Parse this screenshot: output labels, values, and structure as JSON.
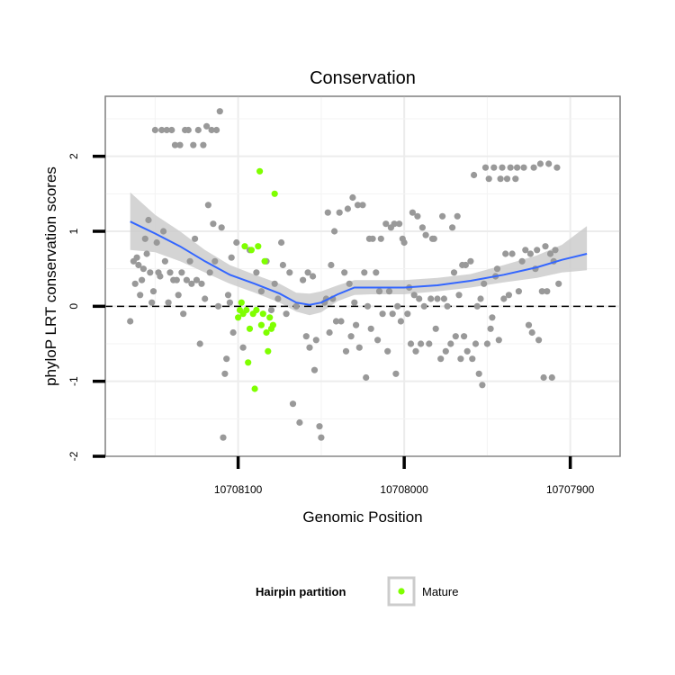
{
  "chart_data": {
    "type": "scatter",
    "title": "Conservation",
    "xlabel": "Genomic Position",
    "ylabel": "phyloP LRT conservation scores",
    "x_reversed": true,
    "xlim": [
      10708180,
      10707870
    ],
    "ylim": [
      -2,
      2.8
    ],
    "x_ticks": [
      10708100,
      10708000,
      10707900
    ],
    "x_tick_labels": [
      "10708100",
      "10708000",
      "10707900"
    ],
    "y_ticks": [
      -2,
      -1,
      0,
      1,
      2
    ],
    "y_tick_labels": [
      "-2",
      "-1",
      "0",
      "1",
      "2"
    ],
    "reference_line": 0,
    "grid": true,
    "legend": {
      "title": "Hairpin partition",
      "position": "bottom",
      "entries": [
        {
          "label": "Mature",
          "color": "#7fff00"
        }
      ]
    },
    "colors": {
      "other": "#999999",
      "mature": "#7fff00",
      "smooth": "#3366ff",
      "band": "#cccccc"
    },
    "series": [
      {
        "name": "Other",
        "color": "#999999",
        "points": [
          [
            10708165,
            -0.2
          ],
          [
            10708163,
            0.6
          ],
          [
            10708162,
            0.3
          ],
          [
            10708161,
            0.65
          ],
          [
            10708160,
            0.55
          ],
          [
            10708159,
            0.15
          ],
          [
            10708158,
            0.35
          ],
          [
            10708157,
            0.5
          ],
          [
            10708156,
            0.9
          ],
          [
            10708155,
            0.7
          ],
          [
            10708154,
            1.15
          ],
          [
            10708153,
            0.45
          ],
          [
            10708152,
            0.05
          ],
          [
            10708151,
            0.2
          ],
          [
            10708150,
            2.35
          ],
          [
            10708149,
            0.85
          ],
          [
            10708148,
            0.45
          ],
          [
            10708147,
            0.4
          ],
          [
            10708146,
            2.35
          ],
          [
            10708145,
            1.0
          ],
          [
            10708144,
            0.6
          ],
          [
            10708143,
            2.35
          ],
          [
            10708142,
            0.05
          ],
          [
            10708141,
            0.45
          ],
          [
            10708140,
            2.35
          ],
          [
            10708139,
            0.35
          ],
          [
            10708138,
            2.15
          ],
          [
            10708137,
            0.35
          ],
          [
            10708136,
            0.15
          ],
          [
            10708135,
            2.15
          ],
          [
            10708134,
            0.45
          ],
          [
            10708133,
            -0.1
          ],
          [
            10708132,
            2.35
          ],
          [
            10708131,
            0.35
          ],
          [
            10708130,
            2.35
          ],
          [
            10708129,
            0.6
          ],
          [
            10708128,
            0.3
          ],
          [
            10708127,
            2.15
          ],
          [
            10708126,
            0.9
          ],
          [
            10708125,
            0.35
          ],
          [
            10708124,
            2.35
          ],
          [
            10708123,
            -0.5
          ],
          [
            10708122,
            0.3
          ],
          [
            10708121,
            2.15
          ],
          [
            10708120,
            0.1
          ],
          [
            10708119,
            2.4
          ],
          [
            10708118,
            1.35
          ],
          [
            10708117,
            0.45
          ],
          [
            10708116,
            2.35
          ],
          [
            10708115,
            1.1
          ],
          [
            10708114,
            0.6
          ],
          [
            10708113,
            2.35
          ],
          [
            10708112,
            0.0
          ],
          [
            10708111,
            2.6
          ],
          [
            10708110,
            1.05
          ],
          [
            10708109,
            -1.75
          ],
          [
            10708108,
            -0.9
          ],
          [
            10708107,
            -0.7
          ],
          [
            10708106,
            0.15
          ],
          [
            10708105,
            0.05
          ],
          [
            10708104,
            0.65
          ],
          [
            10708103,
            -0.35
          ],
          [
            10708101,
            0.85
          ],
          [
            10708097,
            -0.55
          ],
          [
            10708093,
            0.75
          ],
          [
            10708089,
            0.45
          ],
          [
            10708086,
            0.2
          ],
          [
            10708083,
            0.6
          ],
          [
            10708080,
            -0.05
          ],
          [
            10708078,
            0.3
          ],
          [
            10708076,
            0.1
          ],
          [
            10708074,
            0.85
          ],
          [
            10708073,
            0.55
          ],
          [
            10708071,
            -0.1
          ],
          [
            10708069,
            0.45
          ],
          [
            10708067,
            -1.3
          ],
          [
            10708065,
            0.0
          ],
          [
            10708063,
            -1.55
          ],
          [
            10708061,
            0.35
          ],
          [
            10708059,
            -0.4
          ],
          [
            10708058,
            0.45
          ],
          [
            10708057,
            -0.55
          ],
          [
            10708055,
            0.4
          ],
          [
            10708054,
            -0.85
          ],
          [
            10708053,
            -0.45
          ],
          [
            10708051,
            -1.6
          ],
          [
            10708050,
            -1.75
          ],
          [
            10708048,
            0.05
          ],
          [
            10708047,
            0.1
          ],
          [
            10708046,
            1.25
          ],
          [
            10708045,
            -0.35
          ],
          [
            10708044,
            0.55
          ],
          [
            10708043,
            0.1
          ],
          [
            10708042,
            1.0
          ],
          [
            10708041,
            -0.2
          ],
          [
            10708039,
            1.25
          ],
          [
            10708038,
            -0.2
          ],
          [
            10708036,
            0.45
          ],
          [
            10708035,
            -0.6
          ],
          [
            10708034,
            1.3
          ],
          [
            10708033,
            0.3
          ],
          [
            10708032,
            -0.4
          ],
          [
            10708031,
            1.45
          ],
          [
            10708030,
            0.05
          ],
          [
            10708029,
            -0.25
          ],
          [
            10708028,
            1.35
          ],
          [
            10708027,
            -0.55
          ],
          [
            10708025,
            1.35
          ],
          [
            10708024,
            0.45
          ],
          [
            10708023,
            -0.95
          ],
          [
            10708022,
            0.0
          ],
          [
            10708021,
            0.9
          ],
          [
            10708020,
            -0.3
          ],
          [
            10708019,
            0.9
          ],
          [
            10708017,
            0.45
          ],
          [
            10708016,
            -0.45
          ],
          [
            10708015,
            0.2
          ],
          [
            10708014,
            0.9
          ],
          [
            10708013,
            -0.1
          ],
          [
            10708011,
            1.1
          ],
          [
            10708010,
            -0.6
          ],
          [
            10708009,
            0.2
          ],
          [
            10708008,
            1.05
          ],
          [
            10708007,
            -0.1
          ],
          [
            10708006,
            1.1
          ],
          [
            10708005,
            -0.9
          ],
          [
            10708004,
            0.0
          ],
          [
            10708003,
            1.1
          ],
          [
            10708002,
            -0.2
          ],
          [
            10708001,
            0.9
          ],
          [
            10708000,
            0.85
          ],
          [
            10707998,
            -0.1
          ],
          [
            10707997,
            0.25
          ],
          [
            10707996,
            -0.5
          ],
          [
            10707995,
            1.25
          ],
          [
            10707994,
            0.15
          ],
          [
            10707993,
            -0.6
          ],
          [
            10707992,
            1.2
          ],
          [
            10707991,
            0.1
          ],
          [
            10707990,
            -0.5
          ],
          [
            10707989,
            1.05
          ],
          [
            10707988,
            0.0
          ],
          [
            10707987,
            0.95
          ],
          [
            10707985,
            -0.5
          ],
          [
            10707984,
            0.1
          ],
          [
            10707983,
            0.9
          ],
          [
            10707982,
            0.9
          ],
          [
            10707981,
            -0.3
          ],
          [
            10707980,
            0.1
          ],
          [
            10707978,
            -0.7
          ],
          [
            10707977,
            1.2
          ],
          [
            10707976,
            0.1
          ],
          [
            10707975,
            -0.6
          ],
          [
            10707974,
            0.0
          ],
          [
            10707972,
            -0.5
          ],
          [
            10707971,
            1.05
          ],
          [
            10707970,
            0.45
          ],
          [
            10707969,
            -0.4
          ],
          [
            10707968,
            1.2
          ],
          [
            10707967,
            0.15
          ],
          [
            10707966,
            -0.7
          ],
          [
            10707965,
            0.55
          ],
          [
            10707964,
            -0.4
          ],
          [
            10707963,
            0.55
          ],
          [
            10707962,
            -0.6
          ],
          [
            10707960,
            0.6
          ],
          [
            10707959,
            -0.7
          ],
          [
            10707958,
            1.75
          ],
          [
            10707957,
            -0.5
          ],
          [
            10707956,
            0.0
          ],
          [
            10707955,
            -0.9
          ],
          [
            10707954,
            0.1
          ],
          [
            10707953,
            -1.05
          ],
          [
            10707952,
            0.3
          ],
          [
            10707951,
            1.85
          ],
          [
            10707950,
            -0.5
          ],
          [
            10707949,
            1.7
          ],
          [
            10707948,
            -0.3
          ],
          [
            10707947,
            -0.15
          ],
          [
            10707946,
            1.85
          ],
          [
            10707945,
            0.4
          ],
          [
            10707944,
            0.5
          ],
          [
            10707943,
            -0.45
          ],
          [
            10707942,
            1.7
          ],
          [
            10707941,
            1.85
          ],
          [
            10707940,
            0.1
          ],
          [
            10707939,
            0.7
          ],
          [
            10707938,
            1.7
          ],
          [
            10707937,
            0.15
          ],
          [
            10707936,
            1.85
          ],
          [
            10707935,
            0.7
          ],
          [
            10707933,
            1.7
          ],
          [
            10707932,
            1.85
          ],
          [
            10707931,
            0.2
          ],
          [
            10707929,
            0.6
          ],
          [
            10707928,
            1.85
          ],
          [
            10707927,
            0.75
          ],
          [
            10707925,
            -0.25
          ],
          [
            10707924,
            0.7
          ],
          [
            10707923,
            -0.35
          ],
          [
            10707922,
            1.85
          ],
          [
            10707921,
            0.5
          ],
          [
            10707920,
            0.75
          ],
          [
            10707919,
            -0.45
          ],
          [
            10707918,
            1.9
          ],
          [
            10707917,
            0.2
          ],
          [
            10707916,
            -0.95
          ],
          [
            10707915,
            0.8
          ],
          [
            10707914,
            0.2
          ],
          [
            10707913,
            1.9
          ],
          [
            10707912,
            0.7
          ],
          [
            10707911,
            -0.95
          ],
          [
            10707910,
            0.6
          ],
          [
            10707909,
            0.75
          ],
          [
            10707908,
            1.85
          ],
          [
            10707907,
            0.3
          ]
        ]
      },
      {
        "name": "Mature",
        "color": "#7fff00",
        "points": [
          [
            10708100,
            -0.15
          ],
          [
            10708099,
            -0.05
          ],
          [
            10708098,
            0.05
          ],
          [
            10708097,
            -0.1
          ],
          [
            10708096,
            0.8
          ],
          [
            10708095,
            -0.05
          ],
          [
            10708094,
            -0.75
          ],
          [
            10708093,
            -0.3
          ],
          [
            10708092,
            0.75
          ],
          [
            10708091,
            -0.1
          ],
          [
            10708090,
            -1.1
          ],
          [
            10708089,
            -0.05
          ],
          [
            10708088,
            0.8
          ],
          [
            10708087,
            1.8
          ],
          [
            10708086,
            -0.25
          ],
          [
            10708085,
            -0.1
          ],
          [
            10708084,
            0.6
          ],
          [
            10708083,
            -0.35
          ],
          [
            10708082,
            -0.6
          ],
          [
            10708081,
            -0.15
          ],
          [
            10708080,
            -0.3
          ],
          [
            10708079,
            -0.25
          ],
          [
            10708078,
            1.5
          ]
        ]
      }
    ],
    "smooth": [
      [
        10708165,
        1.13
      ],
      [
        10708150,
        0.97
      ],
      [
        10708135,
        0.8
      ],
      [
        10708120,
        0.6
      ],
      [
        10708105,
        0.42
      ],
      [
        10708090,
        0.3
      ],
      [
        10708075,
        0.17
      ],
      [
        10708065,
        0.05
      ],
      [
        10708057,
        0.02
      ],
      [
        10708050,
        0.05
      ],
      [
        10708040,
        0.16
      ],
      [
        10708030,
        0.25
      ],
      [
        10708020,
        0.25
      ],
      [
        10708000,
        0.25
      ],
      [
        10707980,
        0.28
      ],
      [
        10707960,
        0.34
      ],
      [
        10707940,
        0.42
      ],
      [
        10707920,
        0.52
      ],
      [
        10707905,
        0.62
      ],
      [
        10707890,
        0.7
      ]
    ],
    "smooth_band": [
      [
        10708165,
        0.75,
        1.52
      ],
      [
        10708150,
        0.72,
        1.22
      ],
      [
        10708135,
        0.6,
        1.0
      ],
      [
        10708120,
        0.45,
        0.75
      ],
      [
        10708105,
        0.3,
        0.55
      ],
      [
        10708090,
        0.18,
        0.42
      ],
      [
        10708075,
        0.05,
        0.3
      ],
      [
        10708065,
        -0.07,
        0.18
      ],
      [
        10708057,
        -0.12,
        0.17
      ],
      [
        10708050,
        -0.08,
        0.2
      ],
      [
        10708040,
        0.07,
        0.28
      ],
      [
        10708030,
        0.15,
        0.35
      ],
      [
        10708020,
        0.16,
        0.35
      ],
      [
        10708000,
        0.16,
        0.35
      ],
      [
        10707980,
        0.2,
        0.38
      ],
      [
        10707960,
        0.25,
        0.43
      ],
      [
        10707940,
        0.32,
        0.55
      ],
      [
        10707920,
        0.38,
        0.68
      ],
      [
        10707905,
        0.45,
        0.82
      ],
      [
        10707890,
        0.48,
        1.07
      ]
    ]
  }
}
